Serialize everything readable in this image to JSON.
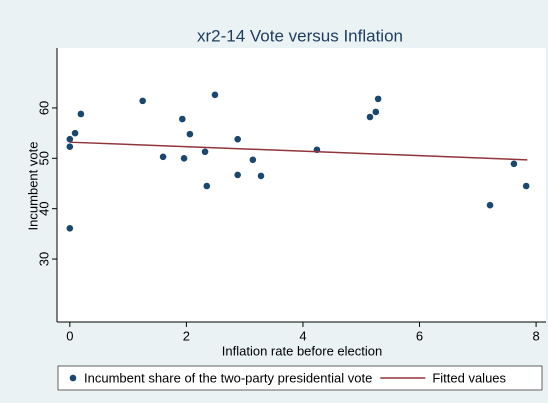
{
  "chart_data": {
    "type": "scatter",
    "title": "xr2-14 Vote versus Inflation",
    "x_label": "Inflation rate before election",
    "y_label": "Incumbent vote",
    "xlim": [
      -0.22,
      8.17
    ],
    "ylim": [
      17.5,
      71.9
    ],
    "xticks": [
      0,
      2,
      4,
      6,
      8
    ],
    "yticks": [
      30,
      40,
      50,
      60
    ],
    "grid": false,
    "series": [
      {
        "name": "Incumbent share of the two-party presidential vote",
        "color": "#1a476f",
        "mode": "markers",
        "x": [
          0,
          0,
          0,
          0.09,
          0.19,
          1.25,
          1.6,
          1.93,
          1.96,
          2.06,
          2.32,
          2.35,
          2.49,
          2.88,
          2.88,
          3.14,
          3.28,
          4.24,
          5.29,
          5.15,
          5.25,
          7.21,
          7.62,
          7.83
        ],
        "values": [
          53.8,
          52.3,
          36.1,
          55.0,
          58.8,
          61.4,
          50.3,
          57.8,
          50.0,
          54.8,
          51.3,
          44.5,
          62.6,
          53.8,
          46.7,
          49.7,
          46.5,
          51.7,
          61.8,
          58.2,
          59.2,
          40.7,
          48.9,
          44.5
        ]
      },
      {
        "name": "Fitted values",
        "color": "#90353b",
        "mode": "line",
        "x": [
          0,
          7.85
        ],
        "values": [
          53.2,
          49.7
        ]
      }
    ]
  }
}
